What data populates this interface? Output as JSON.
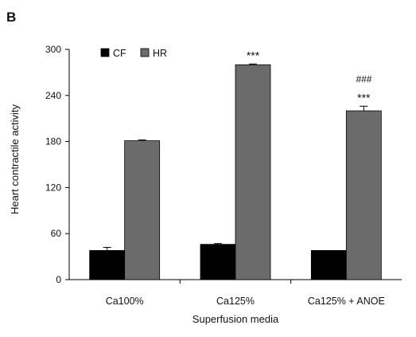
{
  "panel_label": "B",
  "chart_data": {
    "type": "bar",
    "xlabel": "Superfusion media",
    "ylabel": "Heart contractile activity",
    "ylim": [
      0,
      300
    ],
    "yticks": [
      "0",
      "60",
      "120",
      "180",
      "240",
      "300"
    ],
    "categories": [
      "Ca100%",
      "Ca125%",
      "Ca125% + ANOE"
    ],
    "series": [
      {
        "name": "CF",
        "color": "#000000",
        "values": [
          38,
          46,
          38
        ],
        "errors": [
          4,
          1,
          0
        ]
      },
      {
        "name": "HR",
        "color": "#6b6b6b",
        "values": [
          181,
          280,
          220
        ],
        "errors": [
          1,
          1,
          6
        ]
      }
    ],
    "annotations": [
      {
        "category": "Ca125%",
        "series": "HR",
        "lines": [
          "***"
        ]
      },
      {
        "category": "Ca125% + ANOE",
        "series": "HR",
        "lines": [
          "###",
          "***"
        ]
      }
    ],
    "legend": "top-left",
    "grid": false
  }
}
